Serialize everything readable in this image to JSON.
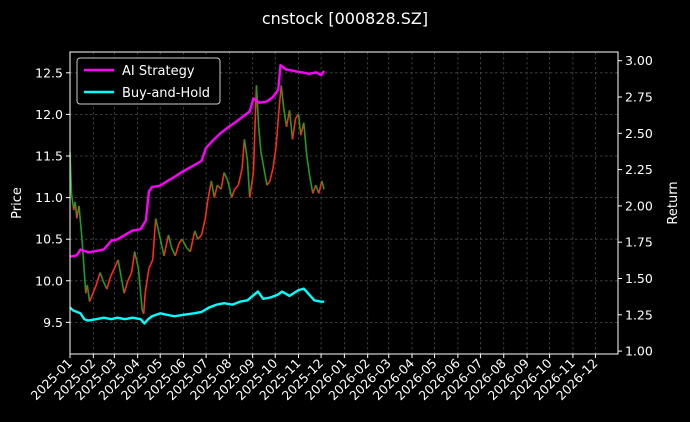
{
  "chart_data": {
    "type": "line",
    "title": "cnstock [000828.SZ]",
    "ylabel_left": "Price",
    "ylabel_right": "Return",
    "y_left_ticks": [
      "9.5",
      "10.0",
      "10.5",
      "11.0",
      "11.5",
      "12.0",
      "12.5"
    ],
    "y_left_values": [
      9.5,
      10.0,
      10.5,
      11.0,
      11.5,
      12.0,
      12.5
    ],
    "y_left_range": [
      9.12,
      12.75
    ],
    "y_right_ticks": [
      "1.00",
      "1.25",
      "1.50",
      "1.75",
      "2.00",
      "2.25",
      "2.50",
      "2.75",
      "3.00"
    ],
    "y_right_values": [
      1.0,
      1.25,
      1.5,
      1.75,
      2.0,
      2.25,
      2.5,
      2.75,
      3.0
    ],
    "y_right_range": [
      0.98,
      3.06
    ],
    "x_range": [
      "2025-01-01",
      "2026-12-31"
    ],
    "x_ticks": [
      "2025-01",
      "2025-02",
      "2025-03",
      "2025-04",
      "2025-05",
      "2025-06",
      "2025-07",
      "2025-08",
      "2025-09",
      "2025-10",
      "2025-11",
      "2025-12",
      "2026-01",
      "2026-02",
      "2026-03",
      "2026-04",
      "2026-05",
      "2026-06",
      "2026-07",
      "2026-08",
      "2026-09",
      "2026-10",
      "2026-11",
      "2026-12"
    ],
    "grid": true,
    "legend_position": "top-left",
    "price_series": {
      "up_color": "#ff2a1a",
      "down_color": "#1f9d1f",
      "points": [
        [
          "2025-01-01",
          11.55
        ],
        [
          "2025-01-03",
          11.05
        ],
        [
          "2025-01-06",
          10.85
        ],
        [
          "2025-01-08",
          10.95
        ],
        [
          "2025-01-10",
          10.75
        ],
        [
          "2025-01-13",
          10.9
        ],
        [
          "2025-01-15",
          10.7
        ],
        [
          "2025-01-17",
          10.5
        ],
        [
          "2025-01-20",
          10.1
        ],
        [
          "2025-01-22",
          9.85
        ],
        [
          "2025-01-24",
          9.95
        ],
        [
          "2025-01-27",
          9.75
        ],
        [
          "2025-02-05",
          9.95
        ],
        [
          "2025-02-10",
          10.1
        ],
        [
          "2025-02-14",
          10.0
        ],
        [
          "2025-02-19",
          9.9
        ],
        [
          "2025-02-24",
          10.05
        ],
        [
          "2025-03-01",
          10.15
        ],
        [
          "2025-03-06",
          10.25
        ],
        [
          "2025-03-10",
          10.05
        ],
        [
          "2025-03-14",
          9.85
        ],
        [
          "2025-03-19",
          10.0
        ],
        [
          "2025-03-24",
          10.1
        ],
        [
          "2025-03-28",
          10.35
        ],
        [
          "2025-04-02",
          10.15
        ],
        [
          "2025-04-07",
          9.65
        ],
        [
          "2025-04-09",
          9.6
        ],
        [
          "2025-04-11",
          9.85
        ],
        [
          "2025-04-16",
          10.15
        ],
        [
          "2025-04-21",
          10.25
        ],
        [
          "2025-04-25",
          10.75
        ],
        [
          "2025-04-30",
          10.55
        ],
        [
          "2025-05-06",
          10.3
        ],
        [
          "2025-05-12",
          10.55
        ],
        [
          "2025-05-16",
          10.4
        ],
        [
          "2025-05-21",
          10.3
        ],
        [
          "2025-05-26",
          10.45
        ],
        [
          "2025-05-30",
          10.5
        ],
        [
          "2025-06-05",
          10.4
        ],
        [
          "2025-06-10",
          10.35
        ],
        [
          "2025-06-16",
          10.6
        ],
        [
          "2025-06-20",
          10.5
        ],
        [
          "2025-06-25",
          10.55
        ],
        [
          "2025-06-30",
          10.75
        ],
        [
          "2025-07-03",
          10.95
        ],
        [
          "2025-07-08",
          11.2
        ],
        [
          "2025-07-12",
          11.0
        ],
        [
          "2025-07-16",
          11.15
        ],
        [
          "2025-07-21",
          11.1
        ],
        [
          "2025-07-25",
          11.3
        ],
        [
          "2025-07-30",
          11.2
        ],
        [
          "2025-08-04",
          11.0
        ],
        [
          "2025-08-08",
          11.1
        ],
        [
          "2025-08-13",
          11.15
        ],
        [
          "2025-08-18",
          11.35
        ],
        [
          "2025-08-21",
          11.7
        ],
        [
          "2025-08-25",
          11.45
        ],
        [
          "2025-08-28",
          11.0
        ],
        [
          "2025-09-02",
          11.3
        ],
        [
          "2025-09-06",
          12.35
        ],
        [
          "2025-09-09",
          11.85
        ],
        [
          "2025-09-12",
          11.55
        ],
        [
          "2025-09-16",
          11.35
        ],
        [
          "2025-09-20",
          11.15
        ],
        [
          "2025-09-24",
          11.2
        ],
        [
          "2025-09-28",
          11.35
        ],
        [
          "2025-10-02",
          11.6
        ],
        [
          "2025-10-06",
          12.05
        ],
        [
          "2025-10-09",
          12.35
        ],
        [
          "2025-10-12",
          12.1
        ],
        [
          "2025-10-16",
          11.85
        ],
        [
          "2025-10-20",
          12.05
        ],
        [
          "2025-10-24",
          11.7
        ],
        [
          "2025-10-28",
          11.95
        ],
        [
          "2025-11-01",
          12.0
        ],
        [
          "2025-11-04",
          11.75
        ],
        [
          "2025-11-08",
          11.9
        ],
        [
          "2025-11-12",
          11.5
        ],
        [
          "2025-11-16",
          11.25
        ],
        [
          "2025-11-20",
          11.05
        ],
        [
          "2025-11-24",
          11.15
        ],
        [
          "2025-11-28",
          11.05
        ],
        [
          "2025-12-02",
          11.2
        ],
        [
          "2025-12-05",
          11.1
        ]
      ]
    },
    "series": [
      {
        "name": "AI Strategy",
        "color": "#ff00ff",
        "points": [
          [
            "2025-01-01",
            1.65
          ],
          [
            "2025-01-10",
            1.66
          ],
          [
            "2025-01-15",
            1.7
          ],
          [
            "2025-01-25",
            1.68
          ],
          [
            "2025-02-05",
            1.69
          ],
          [
            "2025-02-15",
            1.7
          ],
          [
            "2025-02-25",
            1.76
          ],
          [
            "2025-03-05",
            1.77
          ],
          [
            "2025-03-15",
            1.8
          ],
          [
            "2025-03-25",
            1.83
          ],
          [
            "2025-04-05",
            1.84
          ],
          [
            "2025-04-12",
            1.9
          ],
          [
            "2025-04-16",
            2.1
          ],
          [
            "2025-04-20",
            2.13
          ],
          [
            "2025-05-01",
            2.14
          ],
          [
            "2025-05-10",
            2.17
          ],
          [
            "2025-05-20",
            2.2
          ],
          [
            "2025-06-01",
            2.24
          ],
          [
            "2025-06-15",
            2.28
          ],
          [
            "2025-06-25",
            2.31
          ],
          [
            "2025-07-01",
            2.4
          ],
          [
            "2025-07-10",
            2.45
          ],
          [
            "2025-07-20",
            2.5
          ],
          [
            "2025-07-30",
            2.54
          ],
          [
            "2025-08-10",
            2.58
          ],
          [
            "2025-08-20",
            2.62
          ],
          [
            "2025-08-28",
            2.65
          ],
          [
            "2025-09-02",
            2.74
          ],
          [
            "2025-09-10",
            2.71
          ],
          [
            "2025-09-20",
            2.72
          ],
          [
            "2025-09-28",
            2.75
          ],
          [
            "2025-10-05",
            2.8
          ],
          [
            "2025-10-08",
            2.97
          ],
          [
            "2025-10-15",
            2.94
          ],
          [
            "2025-10-25",
            2.93
          ],
          [
            "2025-11-05",
            2.92
          ],
          [
            "2025-11-15",
            2.91
          ],
          [
            "2025-11-25",
            2.92
          ],
          [
            "2025-12-01",
            2.9
          ],
          [
            "2025-12-05",
            2.93
          ]
        ]
      },
      {
        "name": "Buy-and-Hold",
        "color": "#00ffff",
        "points": [
          [
            "2025-01-01",
            1.3
          ],
          [
            "2025-01-05",
            1.28
          ],
          [
            "2025-01-10",
            1.27
          ],
          [
            "2025-01-15",
            1.26
          ],
          [
            "2025-01-20",
            1.22
          ],
          [
            "2025-01-25",
            1.21
          ],
          [
            "2025-02-05",
            1.22
          ],
          [
            "2025-02-15",
            1.23
          ],
          [
            "2025-02-25",
            1.22
          ],
          [
            "2025-03-05",
            1.23
          ],
          [
            "2025-03-15",
            1.22
          ],
          [
            "2025-03-25",
            1.23
          ],
          [
            "2025-04-05",
            1.22
          ],
          [
            "2025-04-10",
            1.19
          ],
          [
            "2025-04-15",
            1.22
          ],
          [
            "2025-04-20",
            1.24
          ],
          [
            "2025-05-01",
            1.26
          ],
          [
            "2025-05-10",
            1.25
          ],
          [
            "2025-05-20",
            1.24
          ],
          [
            "2025-06-01",
            1.25
          ],
          [
            "2025-06-15",
            1.26
          ],
          [
            "2025-06-25",
            1.27
          ],
          [
            "2025-07-05",
            1.3
          ],
          [
            "2025-07-15",
            1.32
          ],
          [
            "2025-07-25",
            1.33
          ],
          [
            "2025-08-05",
            1.32
          ],
          [
            "2025-08-15",
            1.34
          ],
          [
            "2025-08-25",
            1.35
          ],
          [
            "2025-09-01",
            1.38
          ],
          [
            "2025-09-08",
            1.41
          ],
          [
            "2025-09-15",
            1.36
          ],
          [
            "2025-09-25",
            1.37
          ],
          [
            "2025-10-05",
            1.39
          ],
          [
            "2025-10-10",
            1.41
          ],
          [
            "2025-10-20",
            1.38
          ],
          [
            "2025-11-01",
            1.42
          ],
          [
            "2025-11-08",
            1.43
          ],
          [
            "2025-11-15",
            1.39
          ],
          [
            "2025-11-22",
            1.35
          ],
          [
            "2025-12-01",
            1.34
          ],
          [
            "2025-12-05",
            1.34
          ]
        ]
      }
    ]
  }
}
